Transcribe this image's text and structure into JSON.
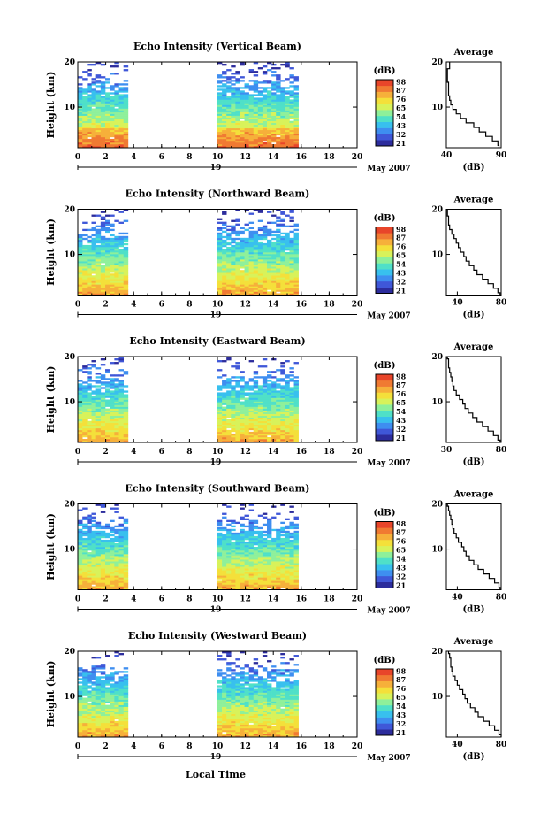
{
  "figure": {
    "colorbar_unit": "(dB)",
    "average_title": "Average",
    "average_xlabel": "(dB)",
    "date_label": "May 2007",
    "day_label": "19",
    "xlabel": "Local Time"
  },
  "colors": {
    "scale": [
      "#2c2c9c",
      "#3f57d8",
      "#3e8ef0",
      "#38c0ee",
      "#4fe0c8",
      "#8ef09a",
      "#d8f25a",
      "#f4e03a",
      "#f6b03a",
      "#f07a32",
      "#e8452a"
    ]
  },
  "chart_data": [
    {
      "type": "heatmap",
      "title": "Echo Intensity (Vertical Beam)",
      "ylabel": "Height (km)",
      "xlim": [
        0,
        20
      ],
      "ylim": [
        1,
        20
      ],
      "xticks": [
        0,
        2,
        4,
        6,
        8,
        10,
        12,
        14,
        16,
        18,
        20
      ],
      "yticks": [
        10,
        20
      ],
      "data_segments": [
        [
          0,
          3.6
        ],
        [
          10,
          15.8
        ]
      ],
      "colorbar_ticks": [
        21,
        32,
        43,
        54,
        65,
        76,
        87,
        98
      ],
      "profile": {
        "xlim": [
          40,
          90
        ],
        "xticks": [
          40,
          90
        ],
        "yticks": [
          10,
          20
        ],
        "height": [
          1,
          2,
          3,
          4,
          5,
          6,
          7,
          8,
          9,
          10,
          11,
          12,
          13,
          14,
          15,
          16,
          17,
          18,
          19,
          20
        ],
        "value": [
          88,
          87,
          82,
          76,
          70,
          65,
          58,
          53,
          49,
          46,
          44,
          43,
          42,
          42,
          42,
          41,
          41,
          41,
          43,
          43
        ]
      }
    },
    {
      "type": "heatmap",
      "title": "Echo Intensity (Northward Beam)",
      "ylabel": "Height (km)",
      "xlim": [
        0,
        20
      ],
      "ylim": [
        1,
        20
      ],
      "xticks": [
        0,
        2,
        4,
        6,
        8,
        10,
        12,
        14,
        16,
        18,
        20
      ],
      "yticks": [
        10,
        20
      ],
      "data_segments": [
        [
          0,
          3.6
        ],
        [
          10,
          15.8
        ]
      ],
      "colorbar_ticks": [
        21,
        32,
        43,
        54,
        65,
        76,
        87,
        98
      ],
      "profile": {
        "xlim": [
          30,
          80
        ],
        "xticks": [
          40,
          80
        ],
        "yticks": [
          10,
          20
        ],
        "height": [
          1,
          2,
          3,
          4,
          5,
          6,
          7,
          8,
          9,
          10,
          11,
          12,
          13,
          14,
          15,
          16,
          17,
          18,
          19,
          20
        ],
        "value": [
          79,
          77,
          73,
          68,
          63,
          58,
          55,
          51,
          48,
          46,
          43,
          41,
          39,
          37,
          35,
          33,
          32,
          32,
          31,
          31
        ]
      }
    },
    {
      "type": "heatmap",
      "title": "Echo Intensity (Eastward Beam)",
      "ylabel": "Height (km)",
      "xlim": [
        0,
        20
      ],
      "ylim": [
        1,
        20
      ],
      "xticks": [
        0,
        2,
        4,
        6,
        8,
        10,
        12,
        14,
        16,
        18,
        20
      ],
      "yticks": [
        10,
        20
      ],
      "data_segments": [
        [
          0,
          3.6
        ],
        [
          10,
          15.8
        ]
      ],
      "colorbar_ticks": [
        21,
        32,
        43,
        54,
        65,
        76,
        87,
        98
      ],
      "profile": {
        "xlim": [
          30,
          80
        ],
        "xticks": [
          30,
          80
        ],
        "yticks": [
          10,
          20
        ],
        "height": [
          1,
          2,
          3,
          4,
          5,
          6,
          7,
          8,
          9,
          10,
          11,
          12,
          13,
          14,
          15,
          16,
          17,
          18,
          19,
          20
        ],
        "value": [
          79,
          77,
          73,
          68,
          63,
          58,
          54,
          50,
          47,
          45,
          42,
          39,
          37,
          36,
          35,
          34,
          33,
          32,
          32,
          31
        ]
      }
    },
    {
      "type": "heatmap",
      "title": "Echo Intensity (Southward Beam)",
      "ylabel": "Height (km)",
      "xlim": [
        0,
        20
      ],
      "ylim": [
        1,
        20
      ],
      "xticks": [
        0,
        2,
        4,
        6,
        8,
        10,
        12,
        14,
        16,
        18,
        20
      ],
      "yticks": [
        10,
        20
      ],
      "data_segments": [
        [
          0,
          3.6
        ],
        [
          10,
          15.8
        ]
      ],
      "colorbar_ticks": [
        21,
        32,
        43,
        54,
        65,
        76,
        87,
        98
      ],
      "profile": {
        "xlim": [
          30,
          80
        ],
        "xticks": [
          40,
          80
        ],
        "yticks": [
          10,
          20
        ],
        "height": [
          1,
          2,
          3,
          4,
          5,
          6,
          7,
          8,
          9,
          10,
          11,
          12,
          13,
          14,
          15,
          16,
          17,
          18,
          19,
          20
        ],
        "value": [
          79,
          78,
          74,
          69,
          64,
          59,
          55,
          51,
          48,
          46,
          44,
          41,
          39,
          37,
          36,
          35,
          34,
          33,
          32,
          31
        ]
      }
    },
    {
      "type": "heatmap",
      "title": "Echo Intensity (Westward Beam)",
      "ylabel": "Height (km)",
      "xlim": [
        0,
        20
      ],
      "ylim": [
        1,
        20
      ],
      "xticks": [
        0,
        2,
        4,
        6,
        8,
        10,
        12,
        14,
        16,
        18,
        20
      ],
      "yticks": [
        10,
        20
      ],
      "data_segments": [
        [
          0,
          3.6
        ],
        [
          10,
          15.8
        ]
      ],
      "colorbar_ticks": [
        21,
        32,
        43,
        54,
        65,
        76,
        87,
        98
      ],
      "profile": {
        "xlim": [
          30,
          80
        ],
        "xticks": [
          40,
          80
        ],
        "yticks": [
          10,
          20
        ],
        "height": [
          1,
          2,
          3,
          4,
          5,
          6,
          7,
          8,
          9,
          10,
          11,
          12,
          13,
          14,
          15,
          16,
          17,
          18,
          19,
          20
        ],
        "value": [
          80,
          78,
          74,
          69,
          64,
          59,
          56,
          52,
          49,
          47,
          45,
          42,
          40,
          38,
          36,
          35,
          34,
          34,
          33,
          32
        ]
      }
    }
  ]
}
